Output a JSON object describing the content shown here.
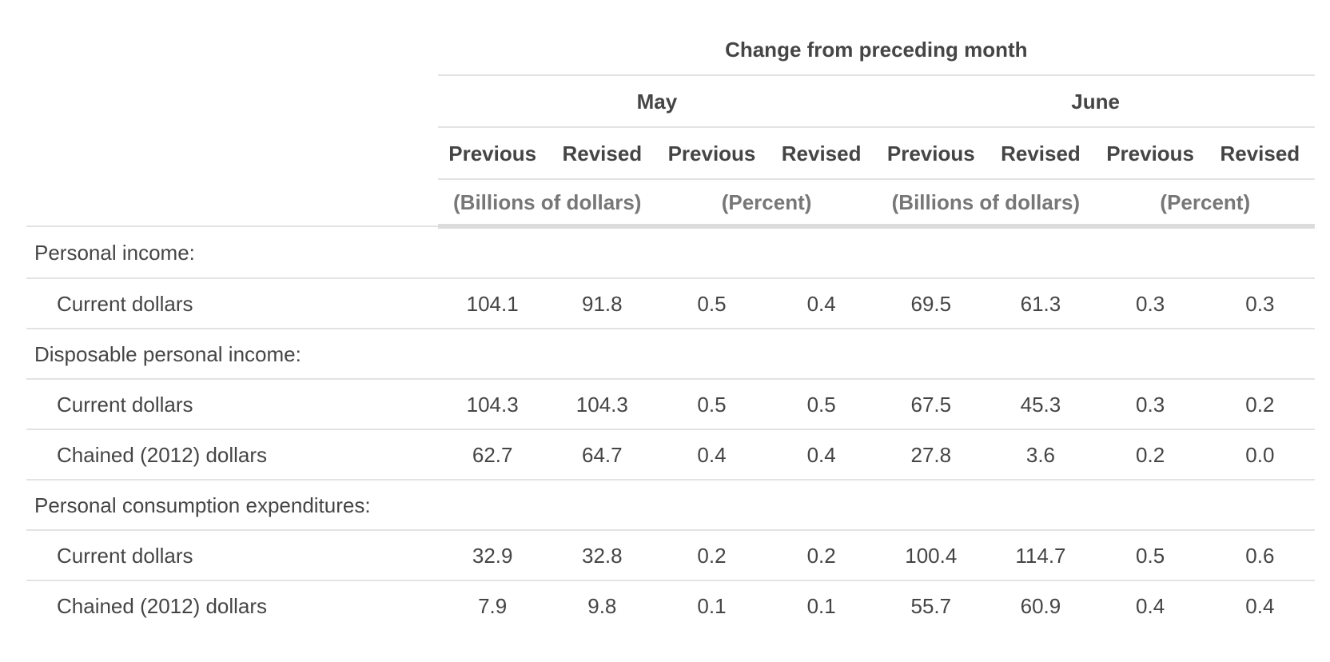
{
  "header": {
    "group_title": "Change from preceding month",
    "months": [
      "May",
      "June"
    ],
    "kinds": [
      "Previous",
      "Revised",
      "Previous",
      "Revised",
      "Previous",
      "Revised",
      "Previous",
      "Revised"
    ],
    "units": [
      "(Billions of dollars)",
      "(Percent)",
      "(Billions of dollars)",
      "(Percent)"
    ]
  },
  "rows": [
    {
      "type": "section",
      "label": "Personal income:"
    },
    {
      "type": "data",
      "label": "Current dollars",
      "values": [
        "104.1",
        "91.8",
        "0.5",
        "0.4",
        "69.5",
        "61.3",
        "0.3",
        "0.3"
      ]
    },
    {
      "type": "section",
      "label": "Disposable personal income:"
    },
    {
      "type": "data",
      "label": "Current dollars",
      "values": [
        "104.3",
        "104.3",
        "0.5",
        "0.5",
        "67.5",
        "45.3",
        "0.3",
        "0.2"
      ]
    },
    {
      "type": "data",
      "label": "Chained (2012) dollars",
      "values": [
        "62.7",
        "64.7",
        "0.4",
        "0.4",
        "27.8",
        "3.6",
        "0.2",
        "0.0"
      ]
    },
    {
      "type": "section",
      "label": "Personal consumption expenditures:"
    },
    {
      "type": "data",
      "label": "Current dollars",
      "values": [
        "32.9",
        "32.8",
        "0.2",
        "0.2",
        "100.4",
        "114.7",
        "0.5",
        "0.6"
      ]
    },
    {
      "type": "data",
      "label": "Chained (2012) dollars",
      "values": [
        "7.9",
        "9.8",
        "0.1",
        "0.1",
        "55.7",
        "60.9",
        "0.4",
        "0.4"
      ]
    }
  ]
}
